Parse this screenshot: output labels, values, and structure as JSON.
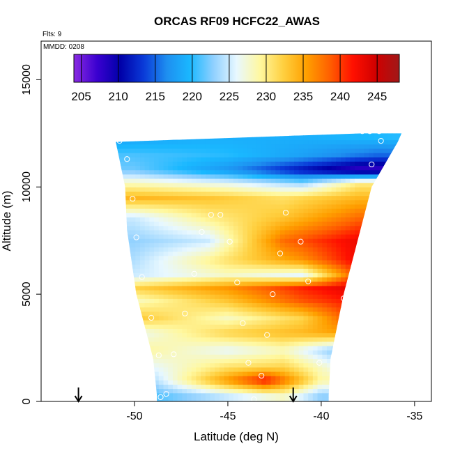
{
  "chart_data": {
    "type": "heatmap",
    "title": "ORCAS RF09 HCFC22_AWAS",
    "annotations": {
      "flights": "Flts: 9",
      "date": "MMDD: 0208"
    },
    "xlabel": "Latitude (deg N)",
    "ylabel": "Altitude (m)",
    "xlim": [
      -55,
      -34.1
    ],
    "ylim": [
      0,
      16800
    ],
    "xticks": [
      -50,
      -45,
      -40,
      -35
    ],
    "yticks": [
      0,
      5000,
      10000,
      15000
    ],
    "colorbar": {
      "ticks": [
        205,
        210,
        215,
        220,
        225,
        230,
        235,
        240,
        245
      ],
      "range": [
        204,
        248
      ],
      "stops": [
        "#8a2be2",
        "#3a00d0",
        "#0000a8",
        "#0a3ad8",
        "#1e8ff0",
        "#1ab8ff",
        "#8fd0ff",
        "#e8f8ff",
        "#fff8a0",
        "#ffd040",
        "#ffa000",
        "#ff6000",
        "#ff1000",
        "#d00000",
        "#a01818"
      ]
    },
    "markers": {
      "type": "arrow",
      "x": [
        -53,
        -41.5
      ]
    },
    "domain_envelope": [
      {
        "alt": 300,
        "lat_min": -48.8,
        "lat_max": -39.6
      },
      {
        "alt": 2000,
        "lat_min": -49.0,
        "lat_max": -39.5
      },
      {
        "alt": 5000,
        "lat_min": -49.9,
        "lat_max": -38.8
      },
      {
        "alt": 8000,
        "lat_min": -50.4,
        "lat_max": -37.9
      },
      {
        "alt": 10000,
        "lat_min": -50.5,
        "lat_max": -37.3
      },
      {
        "alt": 12100,
        "lat_min": -51.0,
        "lat_max": -35.9
      },
      {
        "alt": 12500,
        "lat_min": -37.8,
        "lat_max": -35.7
      }
    ],
    "layers": [
      {
        "alt": 12300,
        "values": [
          {
            "lat": -51,
            "v": 218
          },
          {
            "lat": -46,
            "v": 219
          },
          {
            "lat": -41,
            "v": 219
          },
          {
            "lat": -36,
            "v": 220
          }
        ]
      },
      {
        "alt": 11500,
        "values": [
          {
            "lat": -50,
            "v": 221
          },
          {
            "lat": -45,
            "v": 220
          },
          {
            "lat": -41,
            "v": 218
          },
          {
            "lat": -37,
            "v": 215
          }
        ]
      },
      {
        "alt": 10800,
        "values": [
          {
            "lat": -50,
            "v": 222
          },
          {
            "lat": -45,
            "v": 217
          },
          {
            "lat": -41,
            "v": 211
          },
          {
            "lat": -38,
            "v": 207
          }
        ]
      },
      {
        "alt": 10200,
        "values": [
          {
            "lat": -50,
            "v": 228
          },
          {
            "lat": -45,
            "v": 226
          },
          {
            "lat": -41,
            "v": 223
          },
          {
            "lat": -38,
            "v": 230
          }
        ]
      },
      {
        "alt": 9500,
        "values": [
          {
            "lat": -50,
            "v": 234
          },
          {
            "lat": -46,
            "v": 233
          },
          {
            "lat": -42,
            "v": 231
          },
          {
            "lat": -38,
            "v": 234
          }
        ]
      },
      {
        "alt": 8600,
        "values": [
          {
            "lat": -50,
            "v": 225
          },
          {
            "lat": -46,
            "v": 230
          },
          {
            "lat": -42,
            "v": 233
          },
          {
            "lat": -38,
            "v": 238
          }
        ]
      },
      {
        "alt": 7500,
        "values": [
          {
            "lat": -50,
            "v": 223
          },
          {
            "lat": -46,
            "v": 225
          },
          {
            "lat": -42,
            "v": 238
          },
          {
            "lat": -38,
            "v": 243
          }
        ]
      },
      {
        "alt": 6600,
        "values": [
          {
            "lat": -50,
            "v": 224
          },
          {
            "lat": -45,
            "v": 231
          },
          {
            "lat": -41,
            "v": 236
          },
          {
            "lat": -38,
            "v": 243
          }
        ]
      },
      {
        "alt": 5900,
        "values": [
          {
            "lat": -50,
            "v": 225
          },
          {
            "lat": -45,
            "v": 228
          },
          {
            "lat": -41,
            "v": 226
          },
          {
            "lat": -38,
            "v": 240
          }
        ]
      },
      {
        "alt": 5300,
        "values": [
          {
            "lat": -50,
            "v": 232
          },
          {
            "lat": -45,
            "v": 236
          },
          {
            "lat": -41,
            "v": 241
          },
          {
            "lat": -38,
            "v": 244
          }
        ]
      },
      {
        "alt": 4700,
        "values": [
          {
            "lat": -50,
            "v": 228
          },
          {
            "lat": -45,
            "v": 233
          },
          {
            "lat": -41,
            "v": 239
          },
          {
            "lat": -38,
            "v": 242
          }
        ]
      },
      {
        "alt": 3900,
        "values": [
          {
            "lat": -50,
            "v": 233
          },
          {
            "lat": -45,
            "v": 228
          },
          {
            "lat": -41,
            "v": 232
          },
          {
            "lat": -38,
            "v": 241
          }
        ]
      },
      {
        "alt": 3200,
        "values": [
          {
            "lat": -50,
            "v": 226
          },
          {
            "lat": -45,
            "v": 232
          },
          {
            "lat": -41,
            "v": 234
          },
          {
            "lat": -38,
            "v": 236
          }
        ]
      },
      {
        "alt": 2400,
        "values": [
          {
            "lat": -49,
            "v": 229
          },
          {
            "lat": -45,
            "v": 226
          },
          {
            "lat": -42,
            "v": 228
          },
          {
            "lat": -39,
            "v": 222
          }
        ]
      },
      {
        "alt": 1600,
        "values": [
          {
            "lat": -49,
            "v": 226
          },
          {
            "lat": -45,
            "v": 231
          },
          {
            "lat": -42,
            "v": 232
          },
          {
            "lat": -39,
            "v": 226
          }
        ]
      },
      {
        "alt": 1000,
        "values": [
          {
            "lat": -49,
            "v": 224
          },
          {
            "lat": -45,
            "v": 236
          },
          {
            "lat": -43,
            "v": 242
          },
          {
            "lat": -40,
            "v": 229
          }
        ]
      },
      {
        "alt": 300,
        "values": [
          {
            "lat": -49,
            "v": 221
          },
          {
            "lat": -45,
            "v": 225
          },
          {
            "lat": -42,
            "v": 228
          },
          {
            "lat": -40,
            "v": 223
          }
        ]
      }
    ],
    "samples": [
      {
        "lat": -50.8,
        "alt": 12150
      },
      {
        "lat": -50.4,
        "alt": 11300
      },
      {
        "lat": -50.1,
        "alt": 9450
      },
      {
        "lat": -49.9,
        "alt": 7650
      },
      {
        "lat": -49.6,
        "alt": 5800
      },
      {
        "lat": -49.1,
        "alt": 3900
      },
      {
        "lat": -48.7,
        "alt": 2150
      },
      {
        "lat": -48.6,
        "alt": 200
      },
      {
        "lat": -48.3,
        "alt": 350
      },
      {
        "lat": -47.9,
        "alt": 2200
      },
      {
        "lat": -47.3,
        "alt": 4100
      },
      {
        "lat": -46.8,
        "alt": 5950
      },
      {
        "lat": -46.4,
        "alt": 7900
      },
      {
        "lat": -45.9,
        "alt": 8700
      },
      {
        "lat": -45.4,
        "alt": 8700
      },
      {
        "lat": -44.9,
        "alt": 7450
      },
      {
        "lat": -44.5,
        "alt": 5550
      },
      {
        "lat": -44.2,
        "alt": 3650
      },
      {
        "lat": -43.9,
        "alt": 1800
      },
      {
        "lat": -43.6,
        "alt": 100
      },
      {
        "lat": -43.2,
        "alt": 1200
      },
      {
        "lat": -42.9,
        "alt": 3100
      },
      {
        "lat": -42.6,
        "alt": 5000
      },
      {
        "lat": -42.2,
        "alt": 6900
      },
      {
        "lat": -41.9,
        "alt": 8800
      },
      {
        "lat": -41.1,
        "alt": 7450
      },
      {
        "lat": -40.7,
        "alt": 5600
      },
      {
        "lat": -40.1,
        "alt": 1800
      },
      {
        "lat": -38.8,
        "alt": 4800
      },
      {
        "lat": -37.3,
        "alt": 11050
      },
      {
        "lat": -36.8,
        "alt": 12150
      },
      {
        "lat": -37.8,
        "alt": 12600
      },
      {
        "lat": -37.4,
        "alt": 12600
      },
      {
        "lat": -36.9,
        "alt": 12600
      }
    ]
  }
}
